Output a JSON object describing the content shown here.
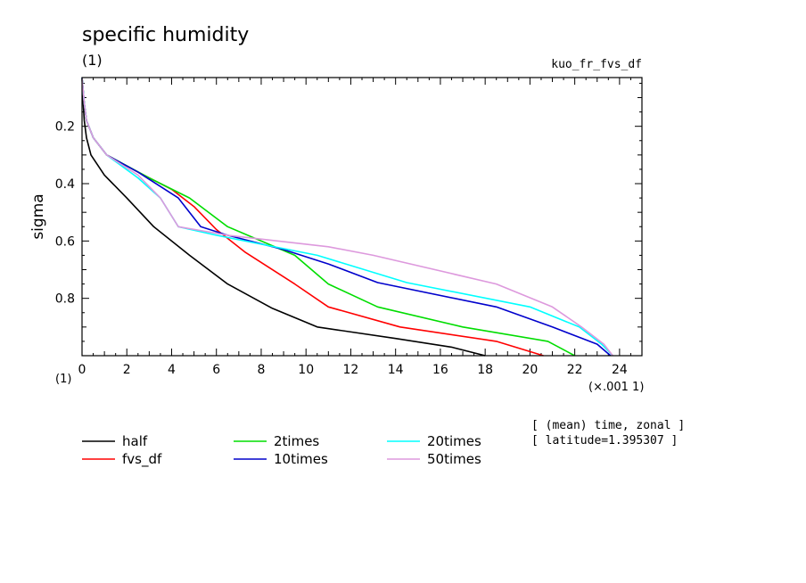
{
  "chart_data": {
    "type": "line",
    "title": "specific humidity",
    "subtitle_left": "(1)",
    "subtitle_right": "kuo_fr_fvs_df",
    "xlabel_units": "(×.001 1)",
    "ylabel": "sigma",
    "y_unit_label": "(1)",
    "info_lines": [
      "[ (mean) time, zonal ]",
      "[ latitude=1.395307 ]"
    ],
    "xlim": [
      0,
      25
    ],
    "ylim": [
      1.0,
      0.03
    ],
    "y_inverted": true,
    "x_ticks": [
      0,
      2,
      4,
      6,
      8,
      10,
      12,
      14,
      16,
      18,
      20,
      22,
      24
    ],
    "y_ticks": [
      0.2,
      0.4,
      0.6,
      0.8
    ],
    "series": [
      {
        "name": "half",
        "color": "#000000",
        "points": [
          [
            0.0,
            0.03
          ],
          [
            0.02,
            0.06
          ],
          [
            0.05,
            0.12
          ],
          [
            0.1,
            0.18
          ],
          [
            0.2,
            0.24
          ],
          [
            0.4,
            0.3
          ],
          [
            1.0,
            0.37
          ],
          [
            2.0,
            0.45
          ],
          [
            3.2,
            0.55
          ],
          [
            4.8,
            0.65
          ],
          [
            6.5,
            0.75
          ],
          [
            8.5,
            0.835
          ],
          [
            10.5,
            0.9
          ],
          [
            14.0,
            0.94
          ],
          [
            16.5,
            0.97
          ],
          [
            18.0,
            1.0
          ]
        ]
      },
      {
        "name": "fvs_df",
        "color": "#ff0000",
        "points": [
          [
            0.0,
            0.03
          ],
          [
            0.1,
            0.12
          ],
          [
            0.2,
            0.18
          ],
          [
            0.5,
            0.24
          ],
          [
            1.1,
            0.3
          ],
          [
            2.5,
            0.36
          ],
          [
            4.0,
            0.42
          ],
          [
            5.0,
            0.48
          ],
          [
            6.0,
            0.56
          ],
          [
            7.3,
            0.64
          ],
          [
            9.5,
            0.75
          ],
          [
            11.0,
            0.83
          ],
          [
            14.2,
            0.9
          ],
          [
            18.5,
            0.95
          ],
          [
            20.6,
            1.0
          ]
        ]
      },
      {
        "name": "2times",
        "color": "#00dd00",
        "points": [
          [
            0.0,
            0.03
          ],
          [
            0.1,
            0.12
          ],
          [
            0.2,
            0.18
          ],
          [
            0.5,
            0.24
          ],
          [
            1.1,
            0.3
          ],
          [
            3.0,
            0.38
          ],
          [
            4.8,
            0.45
          ],
          [
            6.5,
            0.55
          ],
          [
            9.5,
            0.65
          ],
          [
            11.0,
            0.75
          ],
          [
            13.2,
            0.83
          ],
          [
            17.0,
            0.9
          ],
          [
            20.8,
            0.95
          ],
          [
            22.0,
            1.0
          ]
        ]
      },
      {
        "name": "10times",
        "color": "#0000cc",
        "points": [
          [
            0.0,
            0.03
          ],
          [
            0.1,
            0.12
          ],
          [
            0.2,
            0.18
          ],
          [
            0.5,
            0.24
          ],
          [
            1.1,
            0.3
          ],
          [
            2.5,
            0.36
          ],
          [
            4.3,
            0.45
          ],
          [
            5.3,
            0.55
          ],
          [
            6.5,
            0.58
          ],
          [
            9.0,
            0.63
          ],
          [
            11.0,
            0.68
          ],
          [
            13.2,
            0.745
          ],
          [
            18.5,
            0.83
          ],
          [
            21.0,
            0.9
          ],
          [
            23.0,
            0.96
          ],
          [
            23.6,
            1.0
          ]
        ]
      },
      {
        "name": "20times",
        "color": "#00ffff",
        "points": [
          [
            0.0,
            0.03
          ],
          [
            0.1,
            0.12
          ],
          [
            0.2,
            0.18
          ],
          [
            0.5,
            0.24
          ],
          [
            1.1,
            0.3
          ],
          [
            2.5,
            0.38
          ],
          [
            3.5,
            0.45
          ],
          [
            4.3,
            0.55
          ],
          [
            6.0,
            0.58
          ],
          [
            10.5,
            0.65
          ],
          [
            14.5,
            0.745
          ],
          [
            20.0,
            0.83
          ],
          [
            22.2,
            0.9
          ],
          [
            23.2,
            0.96
          ],
          [
            23.7,
            1.0
          ]
        ]
      },
      {
        "name": "50times",
        "color": "#dd99dd",
        "points": [
          [
            0.0,
            0.03
          ],
          [
            0.1,
            0.12
          ],
          [
            0.2,
            0.18
          ],
          [
            0.5,
            0.24
          ],
          [
            1.1,
            0.3
          ],
          [
            2.5,
            0.37
          ],
          [
            3.5,
            0.45
          ],
          [
            4.3,
            0.55
          ],
          [
            6.5,
            0.58
          ],
          [
            11.0,
            0.62
          ],
          [
            13.0,
            0.65
          ],
          [
            18.5,
            0.75
          ],
          [
            21.0,
            0.83
          ],
          [
            22.3,
            0.9
          ],
          [
            23.3,
            0.96
          ],
          [
            23.7,
            1.0
          ]
        ]
      }
    ]
  }
}
